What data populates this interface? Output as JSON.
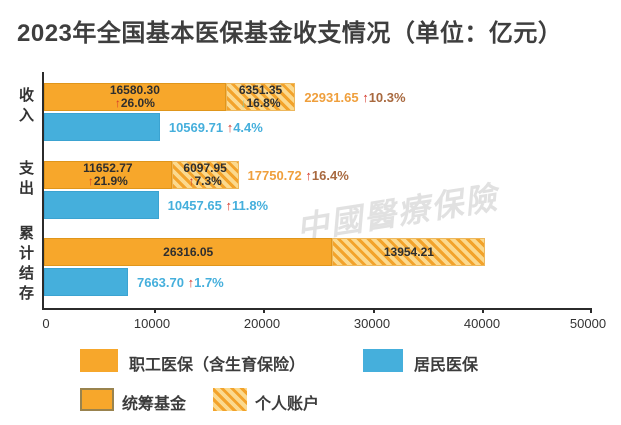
{
  "title": "2023年全国基本医保基金收支情况（单位：亿元）",
  "watermark": "中國醫療保險",
  "colors": {
    "employee_orange": "#F7A72B",
    "hatch_light": "#FBD98E",
    "resident_blue": "#45AFDC",
    "up_arrow_red": "#D6382B",
    "down_arrow_green": "#8FC9A5",
    "axis": "#2B2B2B",
    "total_label_orange": "#EF9F3C"
  },
  "chart_data": {
    "type": "bar",
    "orientation": "horizontal",
    "stacked": true,
    "title": "2023年全国基本医保基金收支情况（单位：亿元）",
    "unit": "亿元",
    "categories": [
      "收入",
      "支出",
      "累计结存"
    ],
    "xlim": [
      0,
      50000
    ],
    "x_ticks": [
      0,
      10000,
      20000,
      30000,
      40000,
      50000
    ],
    "legend_position": "bottom",
    "grid": false,
    "series": [
      {
        "name": "统筹基金",
        "style": "solid-orange",
        "values": [
          16580.3,
          11652.77,
          26316.05
        ]
      },
      {
        "name": "个人账户",
        "style": "hatched-orange",
        "values": [
          6351.35,
          6097.95,
          13954.21
        ]
      },
      {
        "name": "居民医保",
        "style": "solid-blue",
        "values": [
          10569.71,
          10457.65,
          7663.7
        ]
      }
    ],
    "employee_totals_shown": [
      22931.65,
      17750.72
    ],
    "growth_labels": {
      "income": {
        "pooled": "↑26.0%",
        "personal": "↓16.8%",
        "employee_total": "↑10.3%",
        "resident": "↑4.4%"
      },
      "expense": {
        "pooled": "↑21.9%",
        "personal": "↑7.3%",
        "employee_total": "↑16.4%",
        "resident": "↑11.8%"
      },
      "balance": {
        "resident": "↑1.7%"
      }
    }
  },
  "categories": {
    "income": "收入",
    "expense": "支出",
    "balance": "累计结存"
  },
  "rows": {
    "income": {
      "pooled_value": "16580.30",
      "pooled_arrow": "↑",
      "pooled_pct": "26.0%",
      "personal_value": "6351.35",
      "personal_arrow": "↓",
      "personal_pct": "16.8%",
      "total_value": "22931.65",
      "total_arrow": "↑",
      "total_pct": "10.3%",
      "resident_value": "10569.71",
      "resident_arrow": "↑",
      "resident_pct": "4.4%"
    },
    "expense": {
      "pooled_value": "11652.77",
      "pooled_arrow": "↑",
      "pooled_pct": "21.9%",
      "personal_value": "6097.95",
      "personal_arrow": "↑",
      "personal_pct": "7.3%",
      "total_value": "17750.72",
      "total_arrow": "↑",
      "total_pct": "16.4%",
      "resident_value": "10457.65",
      "resident_arrow": "↑",
      "resident_pct": "11.8%"
    },
    "balance": {
      "pooled_value": "26316.05",
      "personal_value": "13954.21",
      "resident_value": "7663.70",
      "resident_arrow": "↑",
      "resident_pct": "1.7%"
    }
  },
  "axis": {
    "ticks": [
      "0",
      "10000",
      "20000",
      "30000",
      "40000",
      "50000"
    ]
  },
  "legend": {
    "employee": "职工医保（含生育保险）",
    "resident": "居民医保",
    "pooled": "统筹基金",
    "personal": "个人账户"
  }
}
